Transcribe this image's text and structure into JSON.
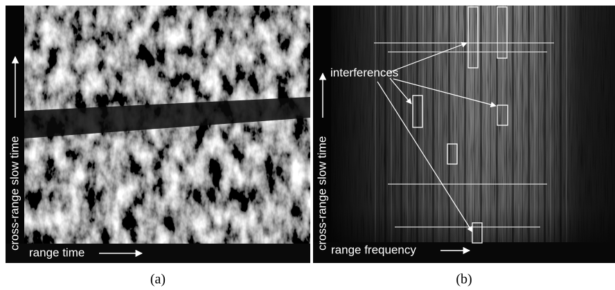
{
  "panels": [
    {
      "caption": "(a)",
      "y_label": "cross-range slow time",
      "x_label": "range time"
    },
    {
      "caption": "(b)",
      "y_label": "cross-range slow time",
      "x_label": "range frequency",
      "annotation": "interferences"
    }
  ]
}
